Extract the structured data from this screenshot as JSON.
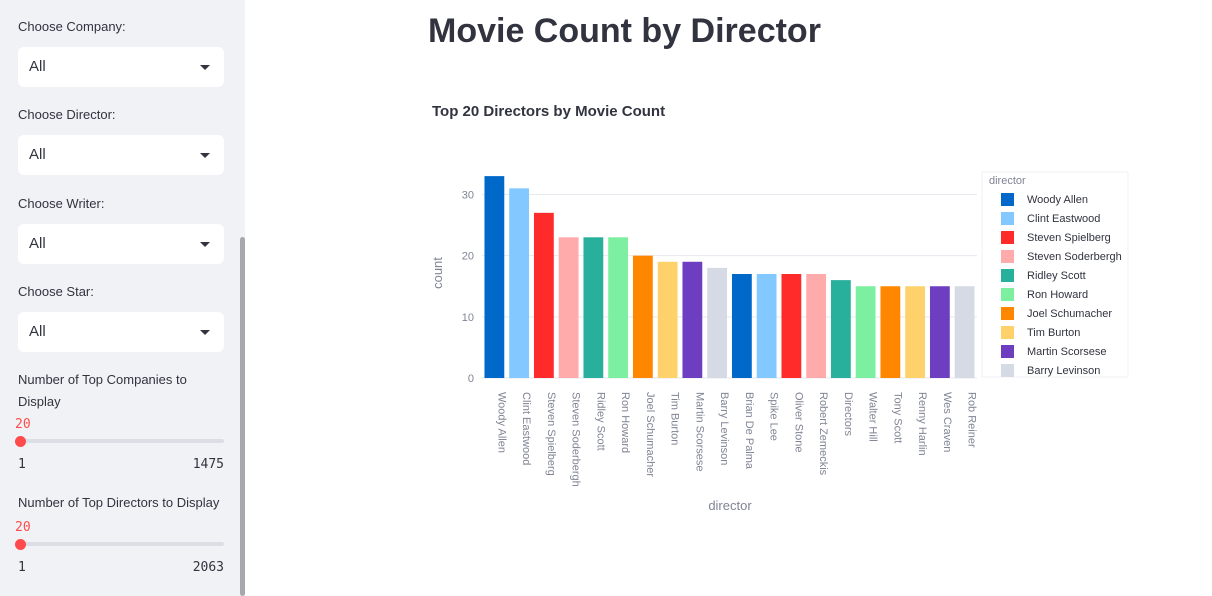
{
  "sidebar": {
    "company": {
      "label": "Choose Company:",
      "value": "All"
    },
    "director": {
      "label": "Choose Director:",
      "value": "All"
    },
    "writer": {
      "label": "Choose Writer:",
      "value": "All"
    },
    "star": {
      "label": "Choose Star:",
      "value": "All"
    },
    "top_companies": {
      "label_line1": "Number of Top Companies to",
      "label_line2": "Display",
      "value": "20",
      "min": "1",
      "max": "1475",
      "fraction": 0.0129
    },
    "top_directors": {
      "label": "Number of Top Directors to Display",
      "value": "20",
      "min": "1",
      "max": "2063",
      "fraction": 0.0092
    }
  },
  "main": {
    "title": "Movie Count by Director",
    "chart_title": "Top 20 Directors by Movie Count"
  },
  "chart_data": {
    "type": "bar",
    "title": "Top 20 Directors by Movie Count",
    "xlabel": "director",
    "ylabel": "count",
    "ylim": [
      0,
      34
    ],
    "yticks": [
      0,
      10,
      20,
      30
    ],
    "grid": true,
    "legend_title": "director",
    "legend_position": "right",
    "categories": [
      "Woody Allen",
      "Clint Eastwood",
      "Steven Spielberg",
      "Steven Soderbergh",
      "Ridley Scott",
      "Ron Howard",
      "Joel Schumacher",
      "Tim Burton",
      "Martin Scorsese",
      "Barry Levinson",
      "Brian De Palma",
      "Spike Lee",
      "Oliver Stone",
      "Robert Zemeckis",
      "Directors",
      "Walter Hill",
      "Tony Scott",
      "Renny Harlin",
      "Wes Craven",
      "Rob Reiner"
    ],
    "values": [
      33,
      31,
      27,
      23,
      23,
      23,
      20,
      19,
      19,
      18,
      17,
      17,
      17,
      17,
      16,
      15,
      15,
      15,
      15,
      15
    ],
    "colors": [
      "#0068c9",
      "#83c9ff",
      "#ff2b2b",
      "#ffabab",
      "#29b09d",
      "#7defa1",
      "#ff8700",
      "#ffd16a",
      "#6d3fc0",
      "#d5dae5",
      "#0068c9",
      "#83c9ff",
      "#ff2b2b",
      "#ffabab",
      "#29b09d",
      "#7defa1",
      "#ff8700",
      "#ffd16a",
      "#6d3fc0",
      "#d5dae5"
    ],
    "legend_items": [
      "Woody Allen",
      "Clint Eastwood",
      "Steven Spielberg",
      "Steven Soderbergh",
      "Ridley Scott",
      "Ron Howard",
      "Joel Schumacher",
      "Tim Burton",
      "Martin Scorsese",
      "Barry Levinson"
    ]
  }
}
